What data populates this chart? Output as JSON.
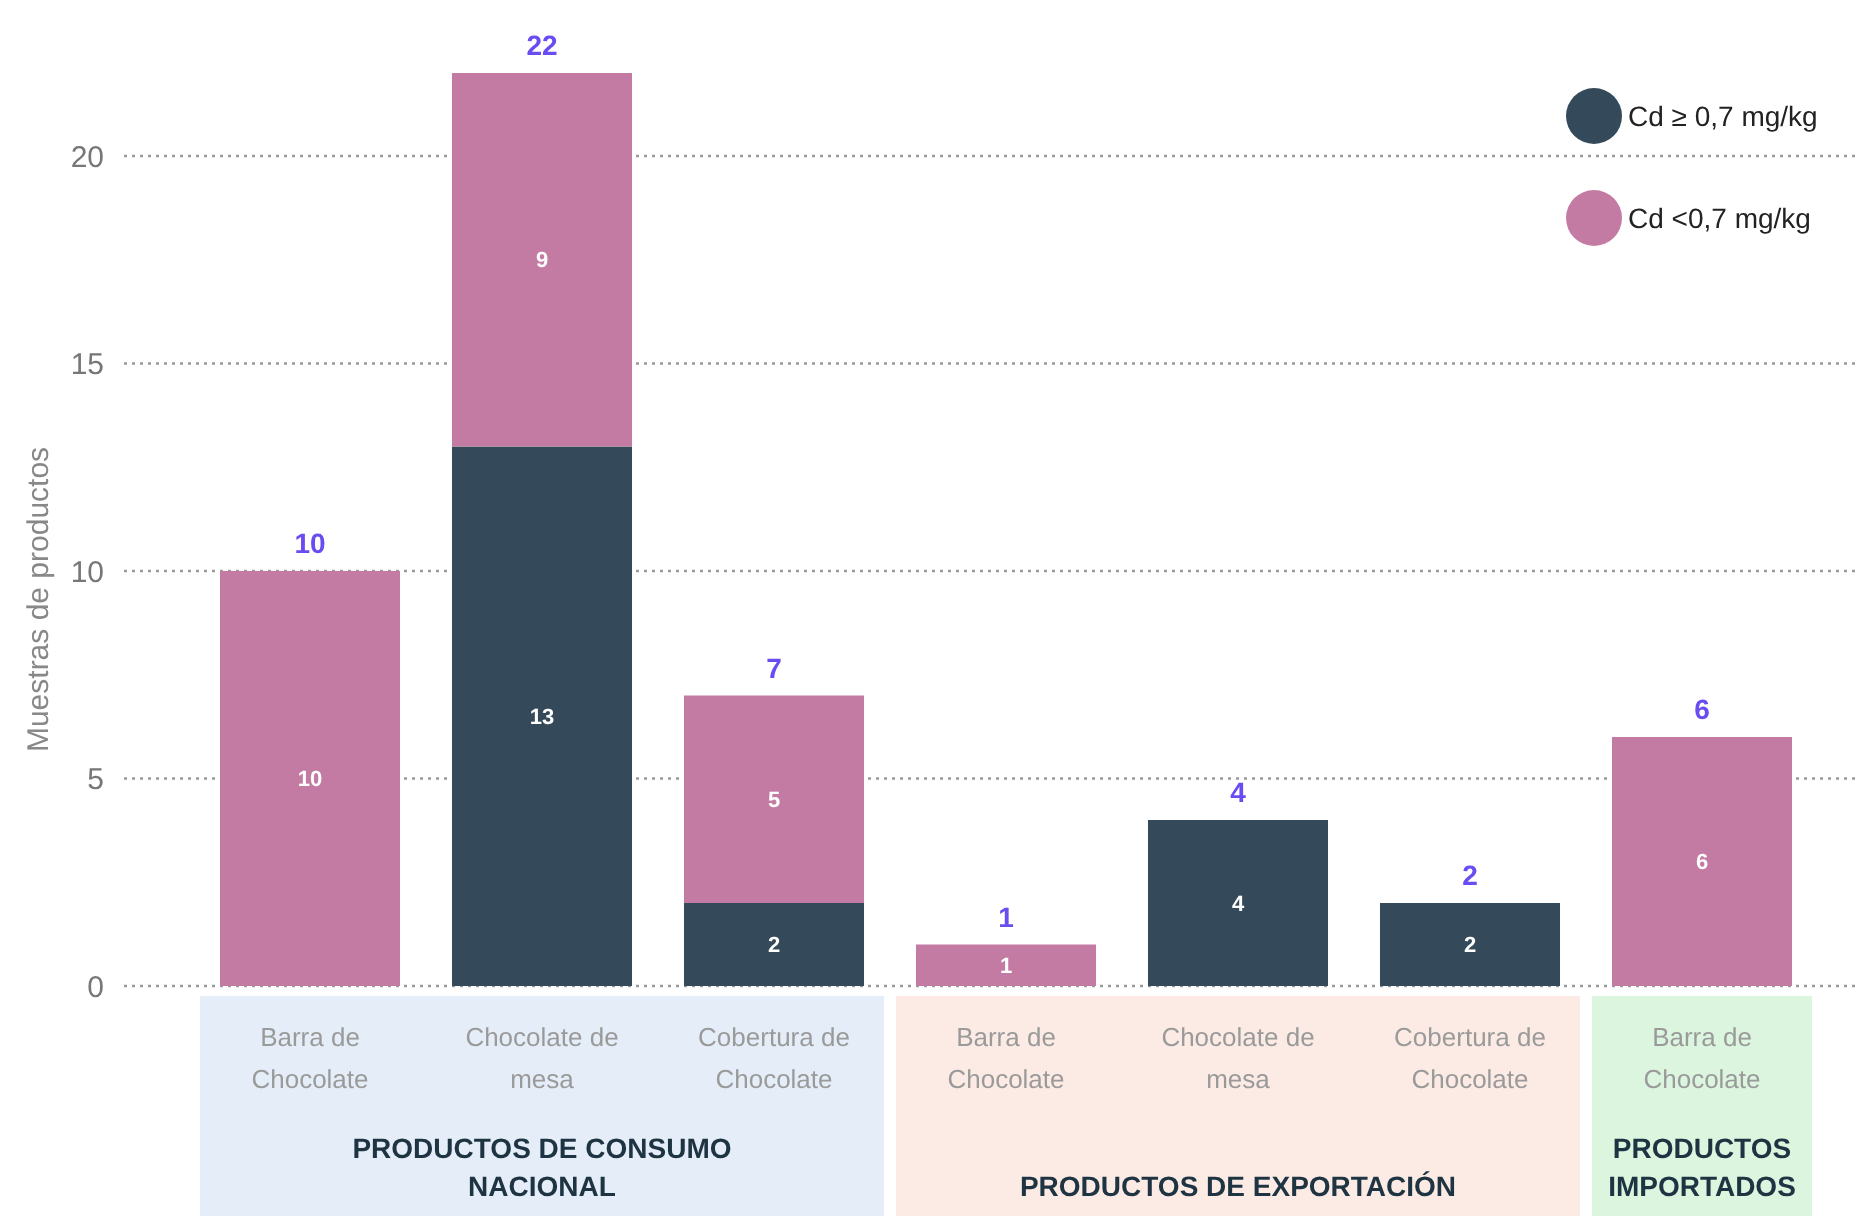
{
  "chart_data": {
    "type": "bar",
    "ylabel": "Muestras de productos",
    "categories": [
      "Barra de Chocolate",
      "Chocolate de mesa",
      "Cobertura de Chocolate",
      "Barra de Chocolate",
      "Chocolate de mesa",
      "Cobertura de Chocolate",
      "Barra de Chocolate"
    ],
    "series": [
      {
        "name": "Cd ≥ 0,7 mg/kg",
        "color": "#344a5a",
        "values": [
          null,
          13,
          2,
          null,
          4,
          2,
          null
        ]
      },
      {
        "name": "Cd <0,7 mg/kg",
        "color": "#c47ba3",
        "values": [
          10,
          9,
          5,
          1,
          null,
          null,
          6
        ]
      }
    ],
    "stacked": true,
    "totals": [
      "10",
      "22",
      "7",
      "1",
      "4",
      "2",
      "6"
    ],
    "data_labels": true,
    "ylim": [
      0,
      22
    ],
    "yticks": [
      0,
      5,
      10,
      15,
      20
    ],
    "grid": "y",
    "legend": "top right",
    "annotations": [
      "PRODUCTOS DE CONSUMO NACIONAL",
      "PRODUCTOS DE EXPORTACIÓN",
      "PRODUCTOS IMPORTADOS"
    ]
  }
}
